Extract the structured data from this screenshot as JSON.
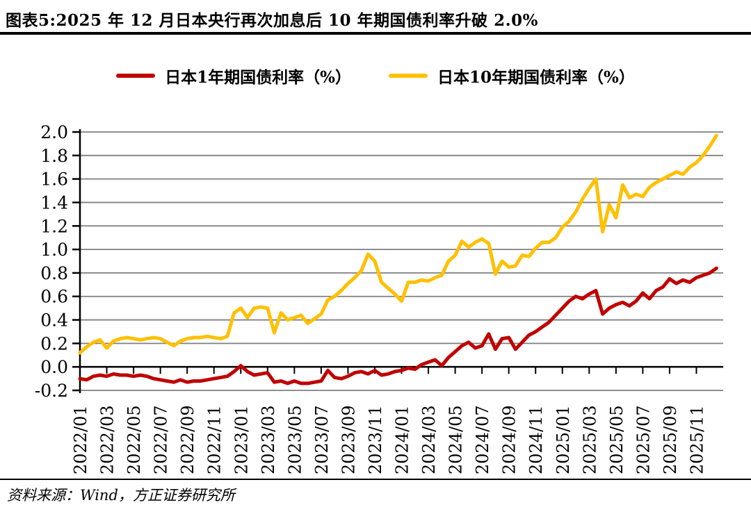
{
  "footer": {
    "source": "资料来源：Wind，方正证券研究所"
  },
  "chart_data": {
    "type": "line",
    "title": "图表5:2025 年 12 月日本央行再次加息后 10 年期国债利率升破 2.0%",
    "x_start": "2022/01",
    "x_end": "2025/12",
    "samples_per_month": 2,
    "months_span": 48,
    "x_tick_labels": [
      "2022/01",
      "2022/03",
      "2022/05",
      "2022/07",
      "2022/09",
      "2022/11",
      "2023/01",
      "2023/03",
      "2023/05",
      "2023/07",
      "2023/09",
      "2023/11",
      "2024/01",
      "2024/03",
      "2024/05",
      "2024/07",
      "2024/09",
      "2024/11",
      "2025/01",
      "2025/03",
      "2025/05",
      "2025/07",
      "2025/09",
      "2025/11"
    ],
    "ylim": [
      -0.2,
      2.0
    ],
    "ytick_step": 0.2,
    "ytick_labels": [
      "2.0",
      "1.8",
      "1.6",
      "1.4",
      "1.2",
      "1.0",
      "0.8",
      "0.6",
      "0.4",
      "0.2",
      "0.0",
      "-0.2"
    ],
    "grid": "horizontal",
    "legend_position": "top",
    "axis_color": "#000000",
    "grid_color": "#7f7f7f",
    "series": [
      {
        "name": "日本1年期国债利率（%）",
        "color": "#C00000",
        "values": [
          -0.1,
          -0.11,
          -0.08,
          -0.07,
          -0.08,
          -0.06,
          -0.07,
          -0.07,
          -0.08,
          -0.07,
          -0.08,
          -0.1,
          -0.11,
          -0.12,
          -0.13,
          -0.11,
          -0.13,
          -0.12,
          -0.12,
          -0.11,
          -0.1,
          -0.09,
          -0.08,
          -0.04,
          0.01,
          -0.04,
          -0.07,
          -0.06,
          -0.05,
          -0.13,
          -0.12,
          -0.14,
          -0.12,
          -0.14,
          -0.14,
          -0.13,
          -0.12,
          -0.03,
          -0.09,
          -0.1,
          -0.08,
          -0.05,
          -0.04,
          -0.06,
          -0.03,
          -0.07,
          -0.06,
          -0.04,
          -0.03,
          -0.01,
          -0.02,
          0.02,
          0.04,
          0.06,
          0.01,
          0.08,
          0.13,
          0.18,
          0.21,
          0.16,
          0.18,
          0.28,
          0.15,
          0.24,
          0.25,
          0.15,
          0.21,
          0.27,
          0.3,
          0.34,
          0.38,
          0.44,
          0.5,
          0.56,
          0.6,
          0.58,
          0.62,
          0.65,
          0.45,
          0.5,
          0.53,
          0.55,
          0.52,
          0.56,
          0.63,
          0.58,
          0.65,
          0.68,
          0.75,
          0.71,
          0.74,
          0.72,
          0.76,
          0.78,
          0.8,
          0.84
        ]
      },
      {
        "name": "日本10年期国债利率（%）",
        "color": "#FFC000",
        "values": [
          0.12,
          0.17,
          0.21,
          0.23,
          0.16,
          0.22,
          0.24,
          0.25,
          0.24,
          0.23,
          0.24,
          0.25,
          0.24,
          0.21,
          0.18,
          0.22,
          0.24,
          0.25,
          0.25,
          0.26,
          0.25,
          0.24,
          0.26,
          0.46,
          0.5,
          0.42,
          0.5,
          0.51,
          0.5,
          0.29,
          0.46,
          0.4,
          0.42,
          0.44,
          0.37,
          0.41,
          0.45,
          0.57,
          0.6,
          0.65,
          0.71,
          0.76,
          0.82,
          0.96,
          0.9,
          0.72,
          0.67,
          0.62,
          0.56,
          0.72,
          0.72,
          0.74,
          0.73,
          0.76,
          0.78,
          0.9,
          0.95,
          1.07,
          1.02,
          1.06,
          1.09,
          1.05,
          0.79,
          0.9,
          0.85,
          0.86,
          0.95,
          0.94,
          1.01,
          1.06,
          1.06,
          1.1,
          1.19,
          1.24,
          1.32,
          1.43,
          1.52,
          1.6,
          1.15,
          1.38,
          1.27,
          1.55,
          1.44,
          1.47,
          1.45,
          1.53,
          1.57,
          1.6,
          1.63,
          1.66,
          1.64,
          1.7,
          1.74,
          1.8,
          1.88,
          1.97
        ]
      }
    ]
  }
}
